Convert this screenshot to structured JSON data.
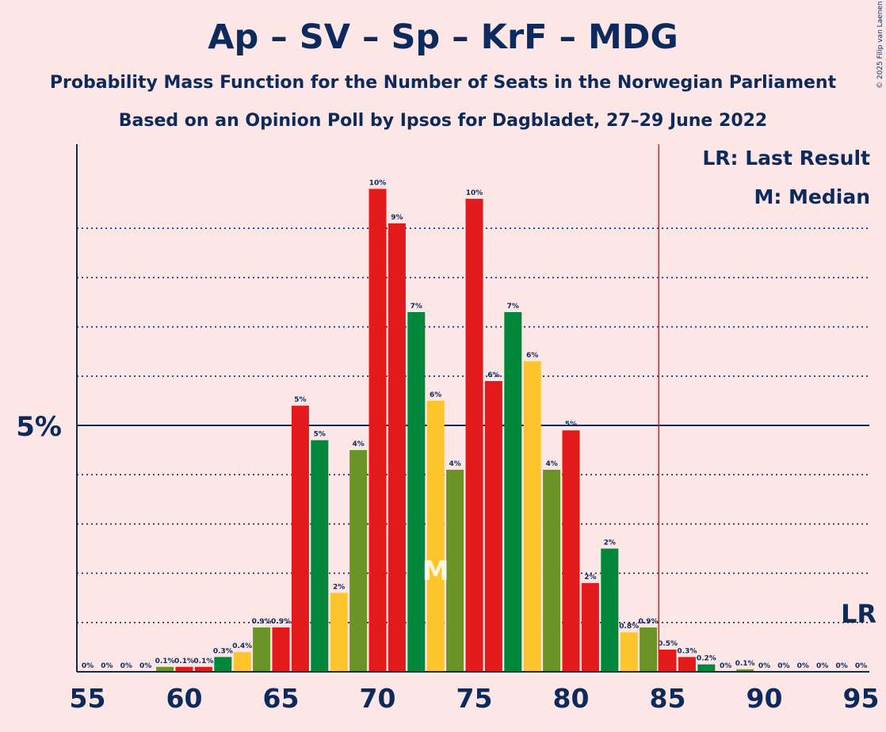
{
  "title": "Ap – SV – Sp – KrF – MDG",
  "subtitle": "Probability Mass Function for the Number of Seats in the Norwegian Parliament",
  "subtitle2": "Based on an Opinion Poll by Ipsos for Dagbladet, 27–29 June 2022",
  "copyright": "© 2025 Filip van Laenen",
  "legend": {
    "last_result": "LR: Last Result",
    "median": "M: Median"
  },
  "chart_data": {
    "type": "bar",
    "x": [
      55,
      56,
      57,
      58,
      59,
      60,
      61,
      62,
      63,
      64,
      65,
      66,
      67,
      68,
      69,
      70,
      71,
      72,
      73,
      74,
      75,
      76,
      77,
      78,
      79,
      80,
      81,
      82,
      83,
      84,
      85,
      86,
      87,
      88,
      89,
      90,
      91,
      92,
      93,
      94,
      95
    ],
    "values": [
      0,
      0,
      0,
      0,
      0.1,
      0.1,
      0.1,
      0.3,
      0.4,
      0.9,
      0.9,
      5.4,
      4.7,
      1.6,
      4.5,
      9.8,
      9.1,
      7.3,
      5.5,
      4.1,
      9.6,
      5.9,
      7.3,
      6.3,
      4.1,
      4.9,
      1.8,
      2.5,
      0.8,
      0.9,
      0.45,
      0.3,
      0.15,
      0,
      0.05,
      0,
      0,
      0,
      0,
      0,
      0
    ],
    "labels": [
      "0%",
      "0%",
      "0%",
      "0%",
      "0.1%",
      "0.1%",
      "0.1%",
      "0.3%",
      "0.4%",
      "0.9%",
      "0.9%",
      "5%",
      "5%",
      "2%",
      "4%",
      "10%",
      "9%",
      "7%",
      "6%",
      "4%",
      "10%",
      "6%",
      "7%",
      "6%",
      "4%",
      "5%",
      "2%",
      "2%",
      "0.8%",
      "0.9%",
      "0.5%",
      "0.3%",
      "0.2%",
      "0%",
      "0.1%",
      "0%",
      "0%",
      "0%",
      "0%",
      "0%",
      "0%"
    ],
    "colors": [
      "#e31a1c",
      "#e31a1c",
      "#e31a1c",
      "#00873c",
      "#6b9427",
      "#e31a1c",
      "#e31a1c",
      "#00873c",
      "#fec42c",
      "#6b9427",
      "#e31a1c",
      "#e31a1c",
      "#00873c",
      "#fec42c",
      "#6b9427",
      "#e31a1c",
      "#e31a1c",
      "#00873c",
      "#fec42c",
      "#6b9427",
      "#e31a1c",
      "#e31a1c",
      "#00873c",
      "#fec42c",
      "#6b9427",
      "#e31a1c",
      "#e31a1c",
      "#00873c",
      "#fec42c",
      "#6b9427",
      "#e31a1c",
      "#e31a1c",
      "#00873c",
      "#fec42c",
      "#6b9427",
      "#e31a1c",
      "#e31a1c",
      "#00873c",
      "#fec42c",
      "#6b9427",
      "#e31a1c"
    ],
    "xticks": [
      55,
      60,
      65,
      70,
      75,
      80,
      85,
      90,
      95
    ],
    "ytick_label": "5%",
    "ytick_value": 5,
    "ylim": [
      0,
      11
    ],
    "gridlines": [
      1,
      2,
      3,
      4,
      6,
      7,
      8,
      9
    ],
    "last_result_seat": 85,
    "median_seat": 73,
    "median_marker": "M",
    "lr_marker": "LR"
  }
}
